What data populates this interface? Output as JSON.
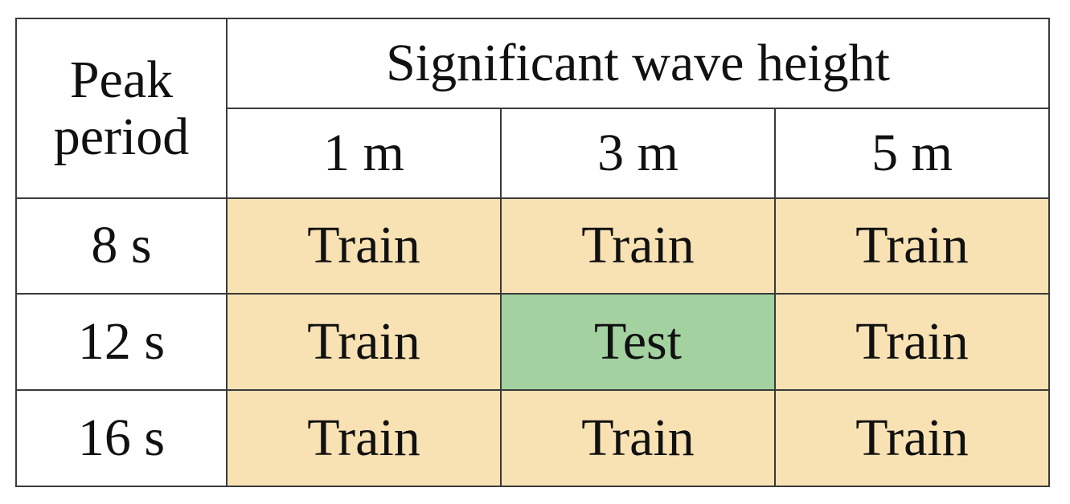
{
  "table": {
    "corner_line1": "Peak",
    "corner_line2": "period",
    "group_header": "Significant wave height",
    "columns": [
      "1 m",
      "3 m",
      "5 m"
    ],
    "rows": [
      {
        "label": "8 s",
        "cells": [
          "Train",
          "Train",
          "Train"
        ]
      },
      {
        "label": "12 s",
        "cells": [
          "Train",
          "Test",
          "Train"
        ]
      },
      {
        "label": "16 s",
        "cells": [
          "Train",
          "Train",
          "Train"
        ]
      }
    ]
  },
  "colors": {
    "train": "#f8e2b3",
    "test": "#a3d2a0",
    "border": "#3a3a3a"
  }
}
